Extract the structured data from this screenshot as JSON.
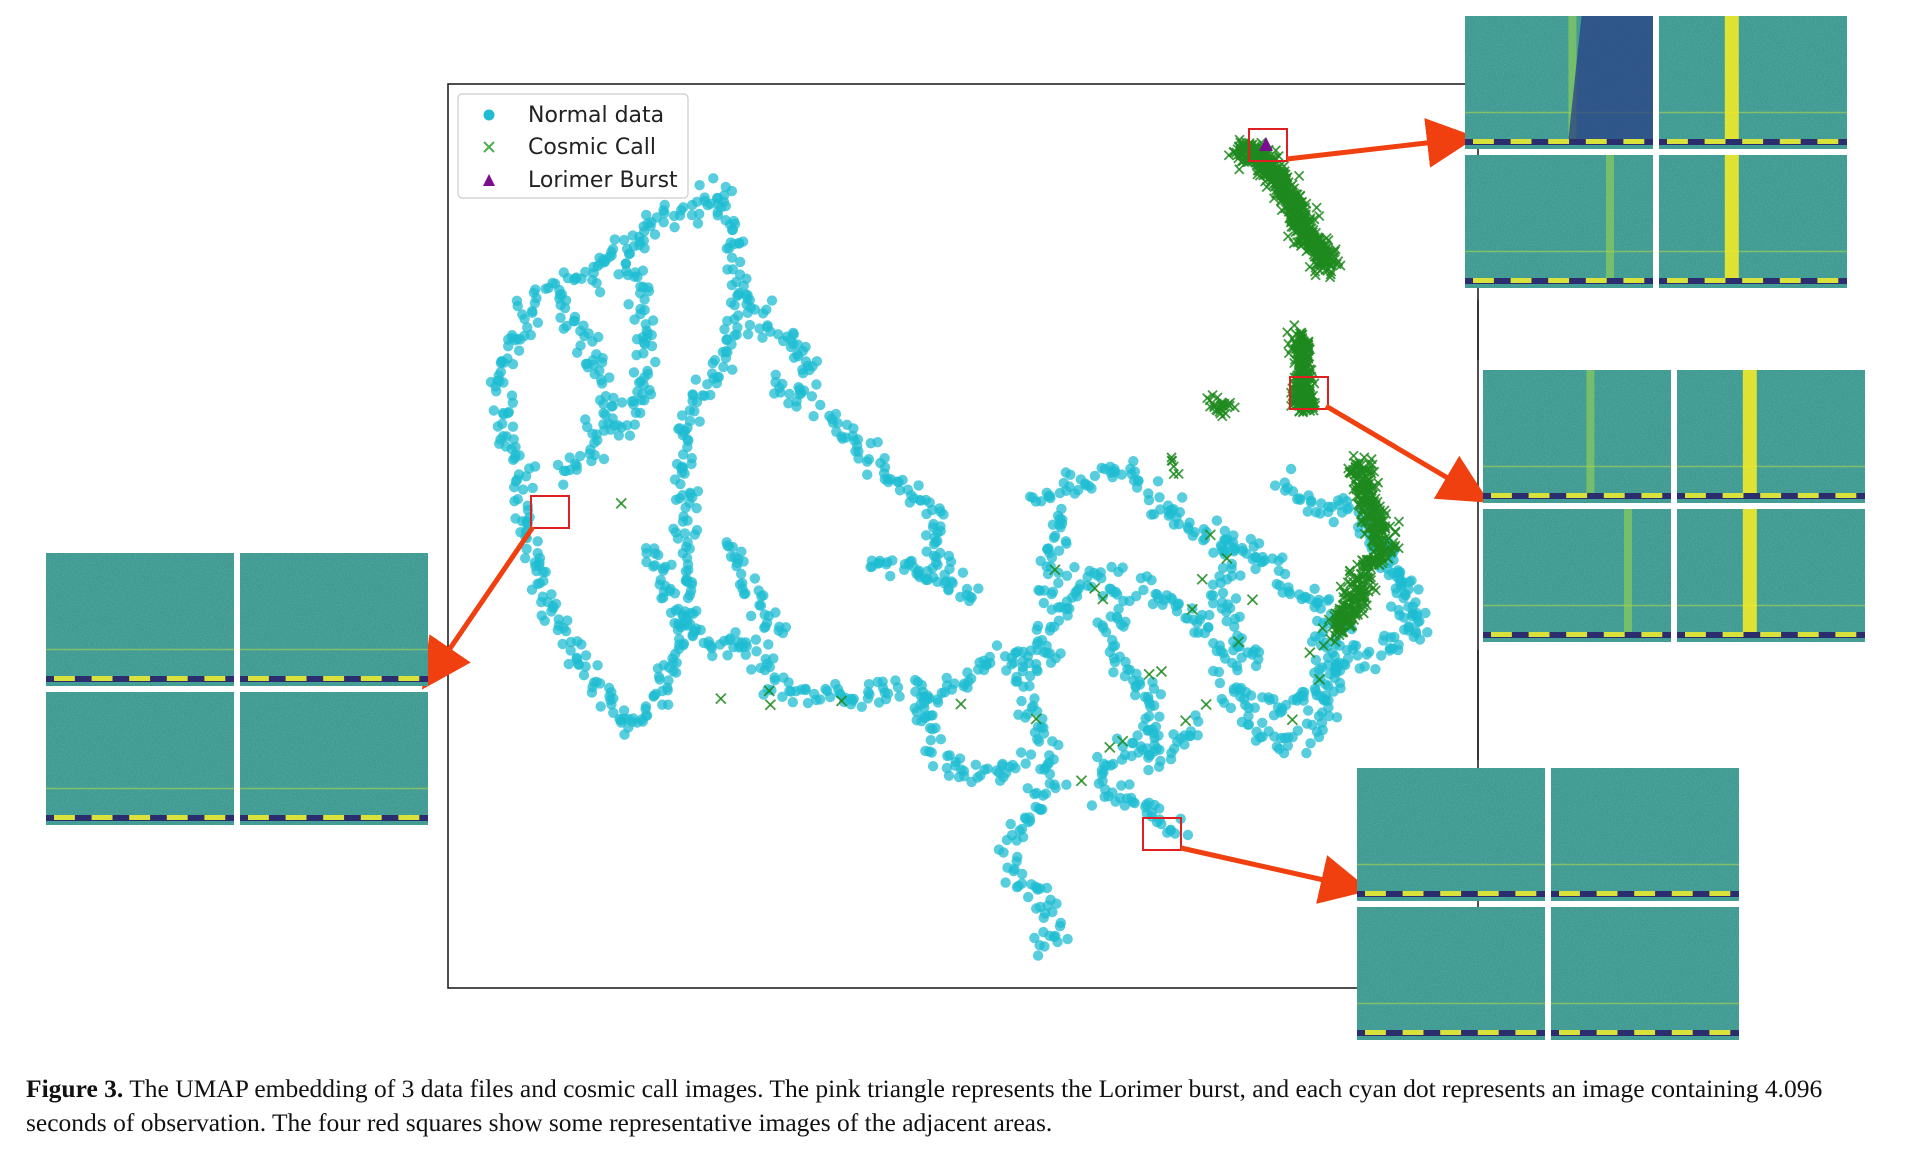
{
  "chart_data": {
    "type": "scatter",
    "title": "",
    "xlabel": "",
    "ylabel": "",
    "grid": false,
    "axes_visible": false,
    "legend_position": "top-left",
    "series": [
      {
        "name": "Normal data",
        "marker": "circle",
        "color": "#1fbcd2"
      },
      {
        "name": "Cosmic Call",
        "marker": "x",
        "color": "#1e8a1e"
      },
      {
        "name": "Lorimer Burst",
        "marker": "triangle",
        "color": "#7a0e8f"
      }
    ],
    "highlight_regions": 4,
    "inset_panels_per_region": 4,
    "colors": {
      "highlight_box": "#e02020",
      "arrow": "#f04010",
      "inset_background": "#2f8f86"
    }
  },
  "caption": {
    "label": "Figure 3.",
    "text": " The UMAP embedding of 3 data files and cosmic call images. The pink triangle represents the Lorimer burst, and each cyan dot represents an image containing 4.096 seconds of observation. The four red squares show some representative images of the adjacent areas."
  }
}
